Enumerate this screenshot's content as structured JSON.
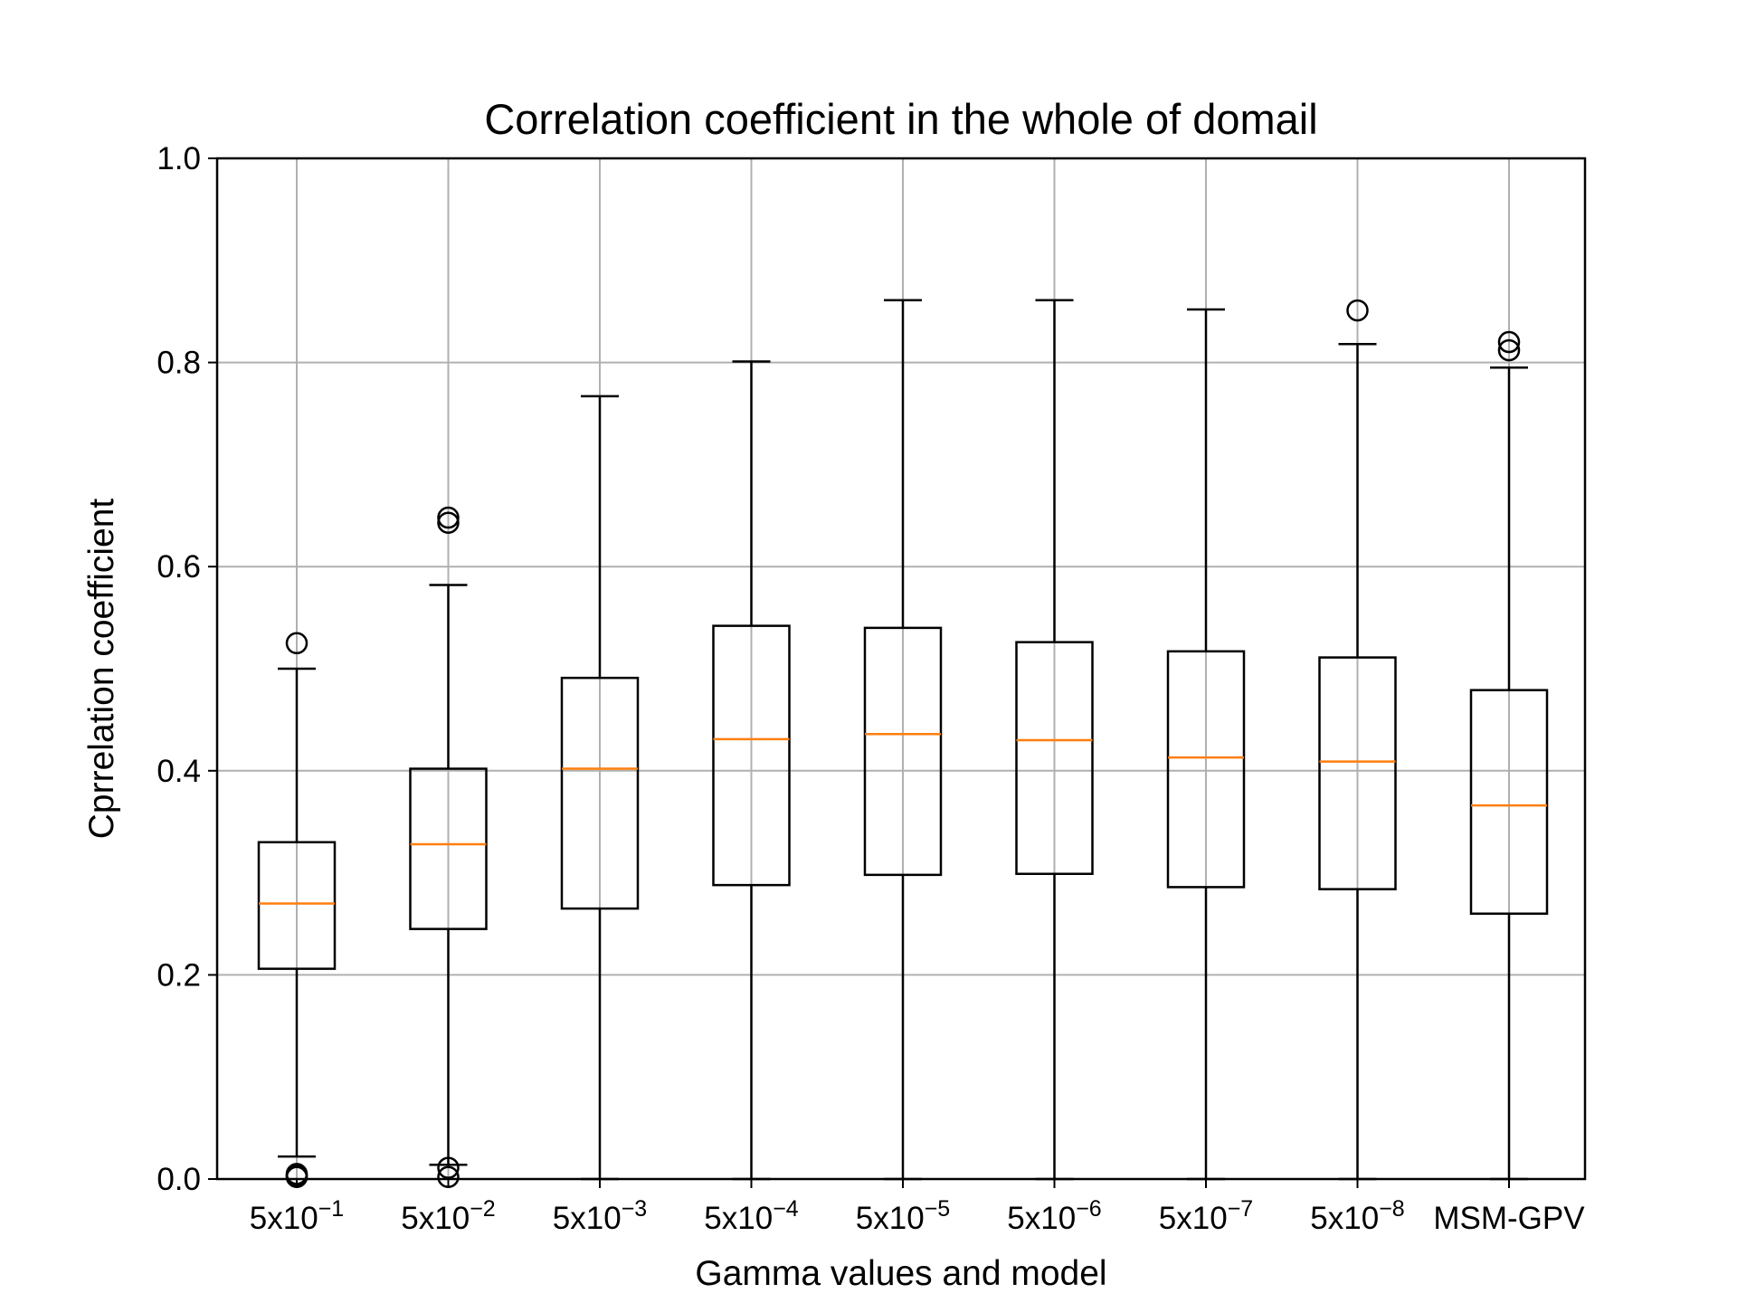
{
  "chart_data": {
    "type": "box",
    "title": "Correlation coefficient in the whole of domail",
    "xlabel": "Gamma values and model",
    "ylabel": "Cprrelation coefficient",
    "ylim": [
      0.0,
      1.0
    ],
    "yticks": [
      0.0,
      0.2,
      0.4,
      0.6,
      0.8,
      1.0
    ],
    "ytick_labels": [
      "0.0",
      "0.2",
      "0.4",
      "0.6",
      "0.8",
      "1.0"
    ],
    "grid": true,
    "categories": [
      {
        "base": "5x10",
        "exp": "−1"
      },
      {
        "base": "5x10",
        "exp": "−2"
      },
      {
        "base": "5x10",
        "exp": "−3"
      },
      {
        "base": "5x10",
        "exp": "−4"
      },
      {
        "base": "5x10",
        "exp": "−5"
      },
      {
        "base": "5x10",
        "exp": "−6"
      },
      {
        "base": "5x10",
        "exp": "−7"
      },
      {
        "base": "5x10",
        "exp": "−8"
      },
      {
        "base": "MSM-GPV",
        "exp": ""
      }
    ],
    "boxes": [
      {
        "whisker_low": 0.022,
        "q1": 0.206,
        "median": 0.27,
        "q3": 0.33,
        "whisker_high": 0.5,
        "outliers": [
          0.525,
          0.005,
          0.004,
          0.003,
          0.002
        ]
      },
      {
        "whisker_low": 0.014,
        "q1": 0.245,
        "median": 0.328,
        "q3": 0.402,
        "whisker_high": 0.582,
        "outliers": [
          0.648,
          0.643,
          0.011,
          0.002
        ]
      },
      {
        "whisker_low": 0.0,
        "q1": 0.265,
        "median": 0.402,
        "q3": 0.491,
        "whisker_high": 0.767,
        "outliers": []
      },
      {
        "whisker_low": 0.0,
        "q1": 0.288,
        "median": 0.431,
        "q3": 0.542,
        "whisker_high": 0.801,
        "outliers": []
      },
      {
        "whisker_low": 0.0,
        "q1": 0.298,
        "median": 0.436,
        "q3": 0.54,
        "whisker_high": 0.861,
        "outliers": []
      },
      {
        "whisker_low": 0.0,
        "q1": 0.299,
        "median": 0.43,
        "q3": 0.526,
        "whisker_high": 0.861,
        "outliers": []
      },
      {
        "whisker_low": 0.0,
        "q1": 0.286,
        "median": 0.413,
        "q3": 0.517,
        "whisker_high": 0.852,
        "outliers": []
      },
      {
        "whisker_low": 0.0,
        "q1": 0.284,
        "median": 0.409,
        "q3": 0.511,
        "whisker_high": 0.818,
        "outliers": [
          0.851
        ]
      },
      {
        "whisker_low": 0.0,
        "q1": 0.26,
        "median": 0.366,
        "q3": 0.479,
        "whisker_high": 0.795,
        "outliers": [
          0.82,
          0.812
        ]
      }
    ],
    "colors": {
      "box": "#000000",
      "median": "#ff7f0e",
      "grid": "#b0b0b0",
      "background": "#ffffff"
    }
  }
}
